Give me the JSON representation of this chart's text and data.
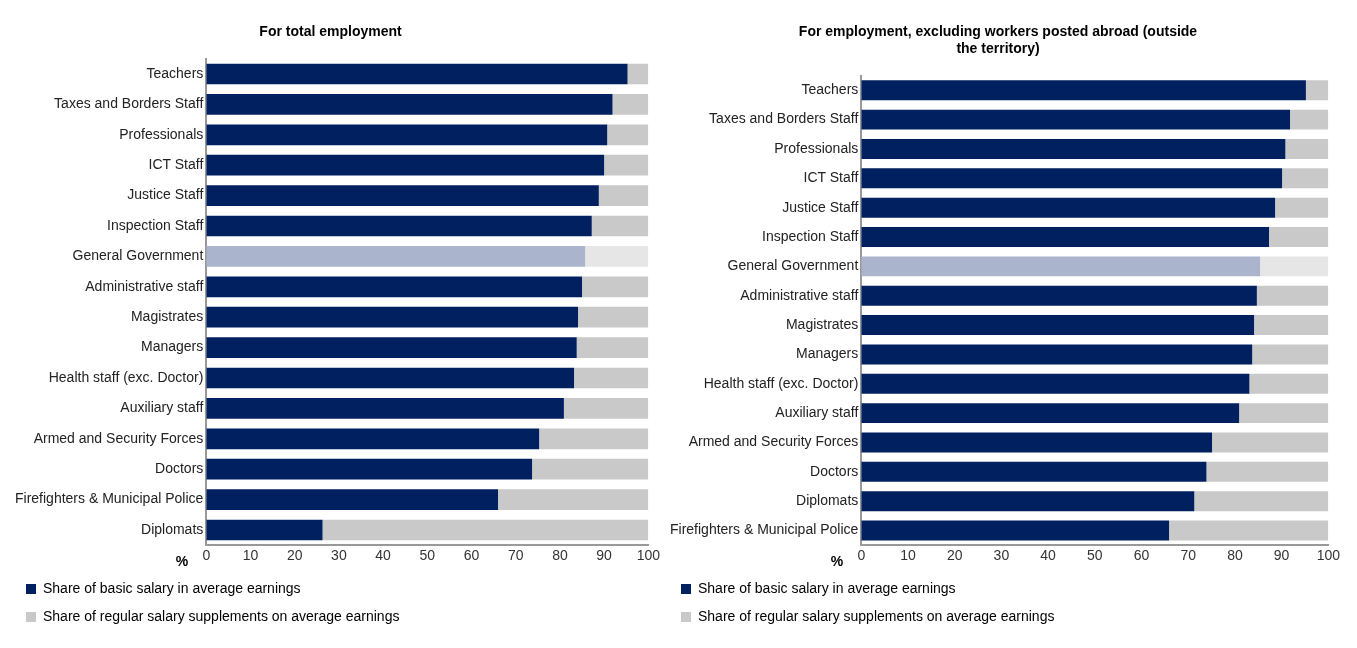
{
  "chart_data": [
    {
      "type": "bar",
      "orientation": "horizontal",
      "stacked": true,
      "title": "For total employment",
      "xlabel": "%",
      "categories": [
        "Teachers",
        "Taxes and Borders Staff",
        "Professionals",
        "ICT Staff",
        "Justice Staff",
        "Inspection Staff",
        "General Government",
        "Administrative staff",
        "Magistrates",
        "Managers",
        "Health staff (exc. Doctor)",
        "Auxiliary staff",
        "Armed and Security Forces",
        "Doctors",
        "Firefighters & Municipal Police",
        "Diplomats"
      ],
      "series": [
        {
          "name": "Share of basic salary in average earnings",
          "color": "#002060",
          "colors": [
            "#002060",
            "#002060",
            "#002060",
            "#002060",
            "#002060",
            "#002060",
            "#aab4cc",
            "#002060",
            "#002060",
            "#002060",
            "#002060",
            "#002060",
            "#002060",
            "#002060",
            "#002060",
            "#002060"
          ],
          "values": [
            95.3,
            91.9,
            90.7,
            90.0,
            88.8,
            87.2,
            85.7,
            85.0,
            84.1,
            83.8,
            83.2,
            80.9,
            75.3,
            73.7,
            66.0,
            26.3
          ]
        },
        {
          "name": "Share of regular salary supplements on average earnings",
          "color": "#c9c9c9",
          "colors": [
            "#c9c9c9",
            "#c9c9c9",
            "#c9c9c9",
            "#c9c9c9",
            "#c9c9c9",
            "#c9c9c9",
            "#e6e6e6",
            "#c9c9c9",
            "#c9c9c9",
            "#c9c9c9",
            "#c9c9c9",
            "#c9c9c9",
            "#c9c9c9",
            "#c9c9c9",
            "#c9c9c9",
            "#c9c9c9"
          ],
          "values": [
            4.7,
            8.1,
            9.3,
            10.0,
            11.2,
            12.8,
            14.3,
            15.0,
            15.9,
            16.2,
            16.8,
            19.1,
            24.7,
            26.3,
            34.0,
            73.7
          ]
        }
      ],
      "xlim": [
        0,
        100
      ],
      "xticks": [
        0,
        10,
        20,
        30,
        40,
        50,
        60,
        70,
        80,
        90,
        100
      ],
      "grid": false,
      "legend": "bottom"
    },
    {
      "type": "bar",
      "orientation": "horizontal",
      "stacked": true,
      "title": "For employment, excluding workers posted abroad (outside the territory)",
      "xlabel": "%",
      "categories": [
        "Teachers",
        "Taxes and Borders Staff",
        "Professionals",
        "ICT Staff",
        "Justice Staff",
        "Inspection Staff",
        "General Government",
        "Administrative staff",
        "Magistrates",
        "Managers",
        "Health staff (exc. Doctor)",
        "Auxiliary staff",
        "Armed and Security Forces",
        "Doctors",
        "Diplomats",
        "Firefighters & Municipal Police"
      ],
      "series": [
        {
          "name": "Share of basic salary in average earnings",
          "color": "#002060",
          "colors": [
            "#002060",
            "#002060",
            "#002060",
            "#002060",
            "#002060",
            "#002060",
            "#aab4cc",
            "#002060",
            "#002060",
            "#002060",
            "#002060",
            "#002060",
            "#002060",
            "#002060",
            "#002060",
            "#002060"
          ],
          "values": [
            95.2,
            91.8,
            90.8,
            90.1,
            88.6,
            87.3,
            85.4,
            84.7,
            84.1,
            83.7,
            83.1,
            80.9,
            75.1,
            73.9,
            71.3,
            65.9
          ]
        },
        {
          "name": "Share of regular salary supplements on average earnings",
          "color": "#c9c9c9",
          "colors": [
            "#c9c9c9",
            "#c9c9c9",
            "#c9c9c9",
            "#c9c9c9",
            "#c9c9c9",
            "#c9c9c9",
            "#e6e6e6",
            "#c9c9c9",
            "#c9c9c9",
            "#c9c9c9",
            "#c9c9c9",
            "#c9c9c9",
            "#c9c9c9",
            "#c9c9c9",
            "#c9c9c9",
            "#c9c9c9"
          ],
          "values": [
            4.8,
            8.2,
            9.2,
            9.9,
            11.4,
            12.7,
            14.6,
            15.3,
            15.9,
            16.3,
            16.9,
            19.1,
            24.9,
            26.1,
            28.7,
            34.1
          ]
        }
      ],
      "xlim": [
        0,
        100
      ],
      "xticks": [
        0,
        10,
        20,
        30,
        40,
        50,
        60,
        70,
        80,
        90,
        100
      ],
      "grid": false,
      "legend": "bottom"
    }
  ]
}
